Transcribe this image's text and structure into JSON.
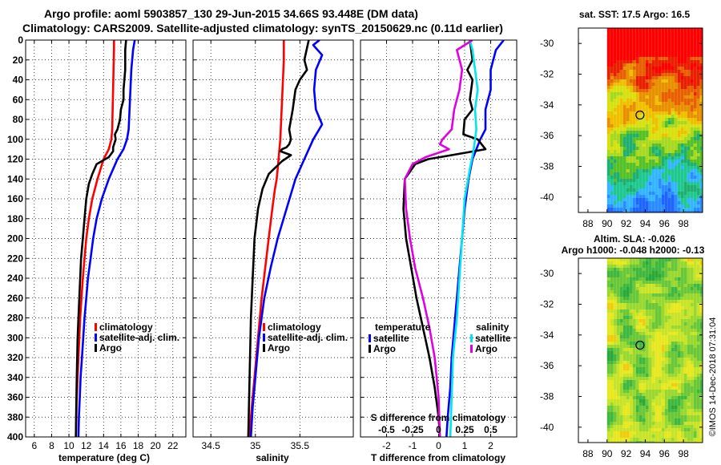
{
  "title_line1": "Argo profile: aoml 5903857_130 29-Jun-2015 34.66S 93.448E (DM data)",
  "title_line2": "Climatology: CARS2009. Satellite-adjusted climatology: synTS_20150629.nc (0.11d earlier)",
  "watermark": "©IMOS 14-Dec-2018 07:31:04",
  "colors": {
    "climatology": "#ff0000",
    "satellite": "#0000ff",
    "argo": "#000000",
    "sal_satellite": "#00e5ee",
    "sal_argo": "#e000e0"
  },
  "chart_data": [
    {
      "type": "line",
      "name": "temperature",
      "xlabel": "temperature (deg C)",
      "xlim": [
        5,
        23.5
      ],
      "ylim": [
        400,
        0
      ],
      "xticks": [
        6,
        8,
        10,
        12,
        14,
        16,
        18,
        20,
        22
      ],
      "yticks": [
        0,
        20,
        40,
        60,
        80,
        100,
        120,
        140,
        160,
        180,
        200,
        220,
        240,
        260,
        280,
        300,
        320,
        340,
        360,
        380,
        400
      ],
      "grid": true,
      "legend": [
        {
          "label": "climatology",
          "color": "#ff0000"
        },
        {
          "label": "satellite-adj. clim.",
          "color": "#0000ff"
        },
        {
          "label": "Argo",
          "color": "#000000"
        }
      ],
      "series": [
        {
          "name": "climatology",
          "color": "#ff0000",
          "x": [
            15.2,
            15.2,
            15.15,
            15.1,
            15.05,
            15.0,
            14.9,
            14.6,
            14.0,
            13.3,
            12.7,
            12.3,
            12.0,
            11.8,
            11.6,
            11.45,
            11.3,
            11.2,
            11.1,
            11.0,
            10.9,
            10.85,
            10.8
          ],
          "depth": [
            0,
            10,
            30,
            50,
            70,
            90,
            100,
            110,
            120,
            140,
            160,
            180,
            200,
            220,
            240,
            260,
            280,
            300,
            320,
            340,
            360,
            380,
            400
          ]
        },
        {
          "name": "satellite-adj. clim.",
          "color": "#0000ff",
          "x": [
            17.6,
            17.4,
            17.2,
            17.1,
            17.0,
            16.9,
            16.7,
            16.3,
            15.6,
            14.6,
            13.8,
            13.2,
            12.8,
            12.5,
            12.2,
            12.0,
            11.8,
            11.65,
            11.5,
            11.35,
            11.25,
            11.15,
            11.1
          ],
          "depth": [
            0,
            10,
            30,
            50,
            70,
            90,
            100,
            110,
            120,
            140,
            160,
            180,
            200,
            220,
            240,
            260,
            280,
            300,
            320,
            340,
            360,
            380,
            400
          ]
        },
        {
          "name": "Argo",
          "color": "#000000",
          "x": [
            16.6,
            16.5,
            16.5,
            16.3,
            16.3,
            16.0,
            15.9,
            15.6,
            15.3,
            15.4,
            15.1,
            15.1,
            14.6,
            13.2,
            12.7,
            12.3,
            12.0,
            11.8,
            11.6,
            11.4,
            11.3,
            11.2,
            11.1,
            11.0,
            10.9,
            10.85,
            10.8
          ],
          "depth": [
            0,
            10,
            30,
            50,
            60,
            70,
            80,
            90,
            95,
            100,
            108,
            112,
            118,
            125,
            135,
            145,
            160,
            180,
            200,
            220,
            240,
            260,
            280,
            300,
            340,
            370,
            400
          ]
        }
      ]
    },
    {
      "type": "line",
      "name": "salinity",
      "xlabel": "salinity",
      "xlim": [
        34.3,
        36.1
      ],
      "ylim": [
        400,
        0
      ],
      "xticks": [
        34.5,
        35,
        35.5
      ],
      "xtick_labels": [
        "34.5",
        "35",
        "35.5"
      ],
      "grid": true,
      "legend": [
        {
          "label": "climatology",
          "color": "#ff0000"
        },
        {
          "label": "satellite-adj. clim.",
          "color": "#0000ff"
        },
        {
          "label": "Argo",
          "color": "#000000"
        }
      ],
      "series": [
        {
          "name": "climatology",
          "color": "#ff0000",
          "x": [
            35.32,
            35.32,
            35.31,
            35.3,
            35.29,
            35.28,
            35.27,
            35.26,
            35.25,
            35.24,
            35.22,
            35.19,
            35.15,
            35.11,
            35.07,
            35.04,
            35.01,
            34.99,
            34.97,
            34.95,
            34.94,
            34.93
          ],
          "depth": [
            0,
            20,
            40,
            60,
            80,
            100,
            110,
            120,
            130,
            140,
            150,
            170,
            200,
            230,
            260,
            290,
            320,
            340,
            360,
            380,
            390,
            400
          ]
        },
        {
          "name": "satellite-adj. clim.",
          "color": "#0000ff",
          "x": [
            35.72,
            35.65,
            35.75,
            35.68,
            35.66,
            35.68,
            35.75,
            35.65,
            35.55,
            35.45,
            35.35,
            35.25,
            35.17,
            35.1,
            35.04,
            35.0,
            34.97,
            34.95
          ],
          "depth": [
            0,
            5,
            15,
            30,
            50,
            70,
            85,
            100,
            120,
            140,
            170,
            200,
            230,
            260,
            300,
            340,
            370,
            400
          ]
        },
        {
          "name": "Argo",
          "color": "#000000",
          "x": [
            35.6,
            35.55,
            35.58,
            35.5,
            35.45,
            35.42,
            35.38,
            35.4,
            35.38,
            35.35,
            35.3,
            35.28,
            35.4,
            35.3,
            35.15,
            35.08,
            35.03,
            34.99,
            34.97,
            34.95,
            34.94,
            34.93,
            34.92
          ],
          "depth": [
            0,
            20,
            30,
            40,
            50,
            70,
            90,
            100,
            105,
            108,
            110,
            112,
            116,
            122,
            135,
            150,
            170,
            200,
            240,
            280,
            320,
            360,
            400
          ]
        }
      ]
    },
    {
      "type": "line",
      "name": "difference",
      "xlabel": "T difference from climatology",
      "xlim": [
        -3,
        3
      ],
      "xticks": [
        -2,
        -1,
        0,
        1,
        2
      ],
      "top_axis_label": "S difference from climatology",
      "top_ticks": [
        -0.5,
        -0.25,
        0,
        0.25,
        0.5
      ],
      "top_tick_labels": [
        "-0.5",
        "-0.25",
        "0",
        "0.25",
        "0.5"
      ],
      "ylim": [
        400,
        0
      ],
      "grid": true,
      "legend": [
        {
          "group": "temperature",
          "label": "satellite",
          "color": "#0000ff"
        },
        {
          "group": "temperature",
          "label": "Argo",
          "color": "#000000"
        },
        {
          "group": "salinity",
          "label": "satellite",
          "color": "#00e5ee"
        },
        {
          "group": "salinity",
          "label": "Argo",
          "color": "#e000e0"
        }
      ],
      "legend_headers": [
        "temperature",
        "salinity"
      ],
      "series": [
        {
          "name": "T satellite",
          "color": "#0000ff",
          "x": [
            2.5,
            2.2,
            2.0,
            2.0,
            1.8,
            1.8,
            1.6,
            1.3,
            1.15,
            1.0,
            0.9,
            0.8,
            0.7,
            0.6,
            0.5,
            0.45,
            0.35,
            0.3
          ],
          "depth": [
            0,
            10,
            30,
            50,
            70,
            90,
            100,
            120,
            140,
            170,
            200,
            230,
            260,
            290,
            320,
            350,
            380,
            400
          ]
        },
        {
          "name": "T Argo",
          "color": "#000000",
          "x": [
            1.2,
            1.3,
            1.1,
            1.3,
            1.2,
            1.3,
            1.0,
            0.95,
            1.5,
            1.8,
            0.5,
            -0.4,
            -0.9,
            -1.3,
            -1.35,
            -1.25,
            -1.05,
            -0.85,
            -0.6,
            -0.35,
            -0.15,
            0.0,
            0.05
          ],
          "depth": [
            0,
            20,
            30,
            40,
            60,
            70,
            80,
            95,
            100,
            110,
            116,
            120,
            125,
            140,
            170,
            200,
            230,
            260,
            290,
            320,
            350,
            380,
            400
          ]
        },
        {
          "name": "S satellite",
          "color": "#00e5ee",
          "x": [
            1.2,
            1.3,
            1.4,
            1.5,
            1.4,
            1.45,
            1.35,
            1.2,
            1.0,
            0.9,
            0.8,
            0.7,
            0.55,
            0.5,
            0.45
          ],
          "depth": [
            0,
            10,
            30,
            50,
            70,
            90,
            110,
            130,
            160,
            200,
            240,
            280,
            320,
            360,
            400
          ]
        },
        {
          "name": "S Argo",
          "color": "#e000e0",
          "x": [
            1.3,
            0.7,
            0.9,
            0.8,
            0.6,
            0.5,
            0.15,
            0.05,
            0.4,
            -0.5,
            -1.0,
            -1.3,
            -1.25,
            -1.1,
            -0.9,
            -0.6,
            -0.35,
            -0.15,
            0.0,
            0.05
          ],
          "depth": [
            0,
            10,
            30,
            50,
            70,
            90,
            100,
            105,
            110,
            118,
            125,
            140,
            170,
            200,
            230,
            260,
            290,
            320,
            360,
            400
          ]
        }
      ]
    },
    {
      "type": "heatmap",
      "name": "sst_map",
      "title": "sat. SST: 17.5 Argo: 16.5",
      "xticks": [
        88,
        90,
        92,
        94,
        96,
        98
      ],
      "yticks": [
        -30,
        -32,
        -34,
        -36,
        -38,
        -40
      ],
      "xlim": [
        87,
        100
      ],
      "ylim": [
        -41,
        -29
      ],
      "data_xmin": 90,
      "argo_position": [
        93.448,
        -34.66
      ]
    },
    {
      "type": "heatmap",
      "name": "sla_map",
      "title_line1": "Altim. SLA: -0.026",
      "title_line2": "Argo h1000: -0.048 h2000: -0.13",
      "xticks": [
        88,
        90,
        92,
        94,
        96,
        98
      ],
      "yticks": [
        -30,
        -32,
        -34,
        -36,
        -38,
        -40
      ],
      "xlim": [
        87,
        100
      ],
      "ylim": [
        -41,
        -29
      ],
      "data_xmin": 90,
      "argo_position": [
        93.448,
        -34.66
      ]
    }
  ]
}
